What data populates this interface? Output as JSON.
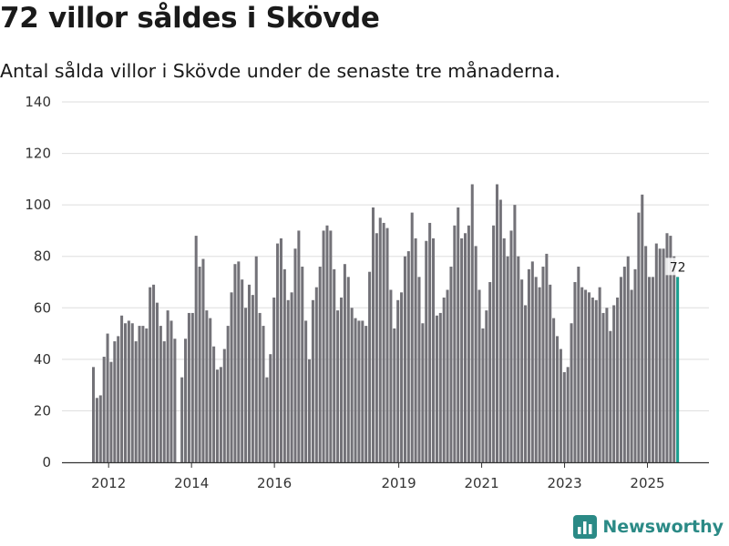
{
  "header": {
    "title": "72 villor såldes i Skövde",
    "subtitle": "Antal sålda villor i Skövde under de senaste tre månaderna."
  },
  "brand": {
    "name": "Newsworthy",
    "icon": "bar-chart-logo-icon",
    "color": "#2b8a86"
  },
  "colors": {
    "bar": "#737278",
    "highlight": "#1a9e8f",
    "grid": "#dddddd",
    "axis": "#333333"
  },
  "chart_data": {
    "type": "bar",
    "title": "72 villor såldes i Skövde",
    "subtitle": "Antal sålda villor i Skövde under de senaste tre månaderna.",
    "xlabel": "",
    "ylabel": "",
    "ylim": [
      0,
      140
    ],
    "yticks": [
      0,
      20,
      40,
      60,
      80,
      100,
      120,
      140
    ],
    "grid": true,
    "x_range": [
      2011.6,
      2025.78
    ],
    "xticks": [
      {
        "label": "2012",
        "value": 2012
      },
      {
        "label": "2014",
        "value": 2014
      },
      {
        "label": "2016",
        "value": 2016
      },
      {
        "label": "2019",
        "value": 2019
      },
      {
        "label": "2021",
        "value": 2021
      },
      {
        "label": "2023",
        "value": 2023
      },
      {
        "label": "2025",
        "value": 2025
      }
    ],
    "start": "2011-12",
    "frequency": "monthly",
    "values": [
      37,
      25,
      26,
      41,
      50,
      39,
      47,
      49,
      57,
      54,
      55,
      54,
      47,
      53,
      53,
      52,
      68,
      69,
      62,
      53,
      47,
      59,
      55,
      48,
      0,
      33,
      48,
      58,
      58,
      88,
      76,
      79,
      59,
      56,
      45,
      36,
      37,
      44,
      53,
      66,
      77,
      78,
      71,
      60,
      69,
      65,
      80,
      58,
      53,
      33,
      42,
      64,
      85,
      87,
      75,
      63,
      66,
      83,
      90,
      76,
      55,
      40,
      63,
      68,
      76,
      90,
      92,
      90,
      75,
      59,
      64,
      77,
      72,
      60,
      56,
      55,
      55,
      53,
      74,
      99,
      89,
      95,
      93,
      91,
      67,
      52,
      63,
      66,
      80,
      82,
      97,
      87,
      72,
      54,
      86,
      93,
      87,
      57,
      58,
      64,
      67,
      76,
      92,
      99,
      87,
      89,
      92,
      108,
      84,
      67,
      52,
      59,
      70,
      92,
      108,
      102,
      87,
      80,
      90,
      100,
      80,
      71,
      61,
      75,
      78,
      72,
      68,
      76,
      81,
      69,
      56,
      49,
      44,
      35,
      37,
      54,
      70,
      76,
      68,
      67,
      66,
      64,
      63,
      68,
      58,
      60,
      51,
      61,
      64,
      72,
      76,
      80,
      67,
      75,
      97,
      104,
      84,
      72,
      72,
      85,
      83,
      83,
      89,
      88,
      80,
      72
    ],
    "highlight_last": true,
    "annotations": [
      {
        "label": "72",
        "target": "last"
      }
    ]
  }
}
